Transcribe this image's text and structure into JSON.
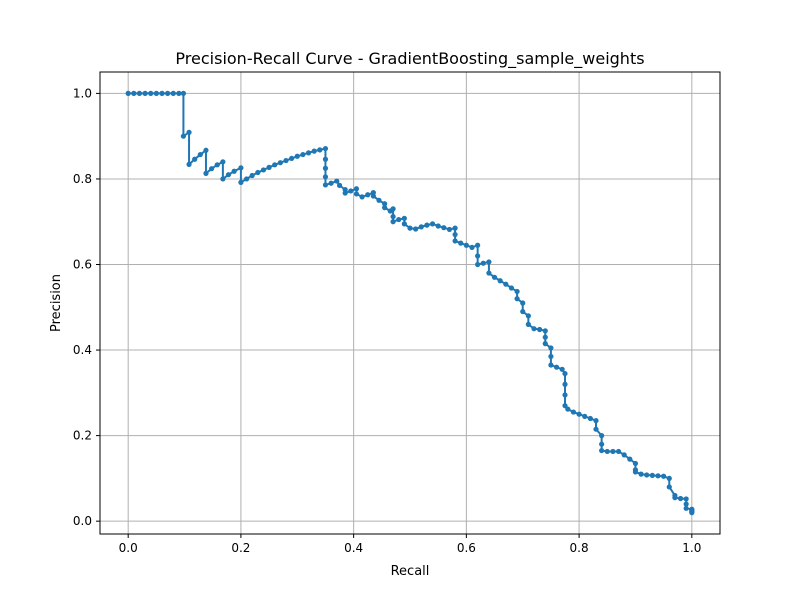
{
  "chart_data": {
    "type": "line",
    "title": "Precision-Recall Curve - GradientBoosting_sample_weights",
    "xlabel": "Recall",
    "ylabel": "Precision",
    "xlim": [
      -0.05,
      1.05
    ],
    "ylim": [
      -0.03,
      1.05
    ],
    "xticks": [
      0.0,
      0.2,
      0.4,
      0.6,
      0.8,
      1.0
    ],
    "xtick_labels": [
      "0.0",
      "0.2",
      "0.4",
      "0.6",
      "0.8",
      "1.0"
    ],
    "yticks": [
      0.0,
      0.2,
      0.4,
      0.6,
      0.8,
      1.0
    ],
    "ytick_labels": [
      "0.0",
      "0.2",
      "0.4",
      "0.6",
      "0.8",
      "1.0"
    ],
    "grid": true,
    "color": "#1f77b4",
    "marker": "circle",
    "series": [
      {
        "points": [
          [
            0.0,
            1.0
          ],
          [
            0.01,
            1.0
          ],
          [
            0.02,
            1.0
          ],
          [
            0.03,
            1.0
          ],
          [
            0.04,
            1.0
          ],
          [
            0.05,
            1.0
          ],
          [
            0.06,
            1.0
          ],
          [
            0.07,
            1.0
          ],
          [
            0.08,
            1.0
          ],
          [
            0.09,
            1.0
          ],
          [
            0.098,
            1.0
          ],
          [
            0.098,
            0.9
          ],
          [
            0.108,
            0.909
          ],
          [
            0.108,
            0.834
          ],
          [
            0.118,
            0.846
          ],
          [
            0.128,
            0.857
          ],
          [
            0.138,
            0.867
          ],
          [
            0.138,
            0.813
          ],
          [
            0.148,
            0.824
          ],
          [
            0.158,
            0.833
          ],
          [
            0.168,
            0.84
          ],
          [
            0.168,
            0.8
          ],
          [
            0.178,
            0.81
          ],
          [
            0.188,
            0.818
          ],
          [
            0.2,
            0.826
          ],
          [
            0.2,
            0.792
          ],
          [
            0.21,
            0.8
          ],
          [
            0.22,
            0.808
          ],
          [
            0.23,
            0.815
          ],
          [
            0.24,
            0.821
          ],
          [
            0.25,
            0.827
          ],
          [
            0.26,
            0.833
          ],
          [
            0.27,
            0.838
          ],
          [
            0.28,
            0.843
          ],
          [
            0.29,
            0.848
          ],
          [
            0.3,
            0.853
          ],
          [
            0.31,
            0.857
          ],
          [
            0.32,
            0.861
          ],
          [
            0.33,
            0.865
          ],
          [
            0.34,
            0.868
          ],
          [
            0.35,
            0.871
          ],
          [
            0.35,
            0.846
          ],
          [
            0.35,
            0.825
          ],
          [
            0.35,
            0.805
          ],
          [
            0.35,
            0.786
          ],
          [
            0.36,
            0.79
          ],
          [
            0.37,
            0.795
          ],
          [
            0.375,
            0.785
          ],
          [
            0.385,
            0.775
          ],
          [
            0.385,
            0.767
          ],
          [
            0.395,
            0.772
          ],
          [
            0.405,
            0.777
          ],
          [
            0.405,
            0.765
          ],
          [
            0.415,
            0.758
          ],
          [
            0.425,
            0.763
          ],
          [
            0.435,
            0.768
          ],
          [
            0.435,
            0.76
          ],
          [
            0.445,
            0.75
          ],
          [
            0.455,
            0.742
          ],
          [
            0.455,
            0.733
          ],
          [
            0.465,
            0.725
          ],
          [
            0.47,
            0.73
          ],
          [
            0.47,
            0.712
          ],
          [
            0.47,
            0.7
          ],
          [
            0.48,
            0.705
          ],
          [
            0.49,
            0.708
          ],
          [
            0.49,
            0.695
          ],
          [
            0.5,
            0.685
          ],
          [
            0.51,
            0.683
          ],
          [
            0.52,
            0.688
          ],
          [
            0.53,
            0.692
          ],
          [
            0.54,
            0.695
          ],
          [
            0.55,
            0.69
          ],
          [
            0.56,
            0.686
          ],
          [
            0.57,
            0.682
          ],
          [
            0.58,
            0.685
          ],
          [
            0.58,
            0.67
          ],
          [
            0.58,
            0.655
          ],
          [
            0.59,
            0.65
          ],
          [
            0.6,
            0.645
          ],
          [
            0.61,
            0.64
          ],
          [
            0.62,
            0.645
          ],
          [
            0.62,
            0.62
          ],
          [
            0.62,
            0.6
          ],
          [
            0.63,
            0.603
          ],
          [
            0.64,
            0.606
          ],
          [
            0.64,
            0.58
          ],
          [
            0.65,
            0.57
          ],
          [
            0.66,
            0.562
          ],
          [
            0.67,
            0.554
          ],
          [
            0.68,
            0.545
          ],
          [
            0.69,
            0.537
          ],
          [
            0.69,
            0.52
          ],
          [
            0.7,
            0.51
          ],
          [
            0.7,
            0.49
          ],
          [
            0.71,
            0.48
          ],
          [
            0.71,
            0.46
          ],
          [
            0.72,
            0.45
          ],
          [
            0.73,
            0.448
          ],
          [
            0.74,
            0.445
          ],
          [
            0.74,
            0.43
          ],
          [
            0.74,
            0.415
          ],
          [
            0.75,
            0.405
          ],
          [
            0.75,
            0.385
          ],
          [
            0.75,
            0.365
          ],
          [
            0.76,
            0.36
          ],
          [
            0.77,
            0.355
          ],
          [
            0.775,
            0.345
          ],
          [
            0.775,
            0.32
          ],
          [
            0.775,
            0.295
          ],
          [
            0.775,
            0.27
          ],
          [
            0.78,
            0.262
          ],
          [
            0.79,
            0.255
          ],
          [
            0.8,
            0.25
          ],
          [
            0.81,
            0.245
          ],
          [
            0.82,
            0.24
          ],
          [
            0.83,
            0.235
          ],
          [
            0.83,
            0.215
          ],
          [
            0.84,
            0.2
          ],
          [
            0.84,
            0.18
          ],
          [
            0.84,
            0.165
          ],
          [
            0.85,
            0.163
          ],
          [
            0.86,
            0.163
          ],
          [
            0.87,
            0.163
          ],
          [
            0.88,
            0.155
          ],
          [
            0.89,
            0.145
          ],
          [
            0.9,
            0.135
          ],
          [
            0.9,
            0.12
          ],
          [
            0.9,
            0.115
          ],
          [
            0.91,
            0.11
          ],
          [
            0.92,
            0.108
          ],
          [
            0.93,
            0.107
          ],
          [
            0.94,
            0.106
          ],
          [
            0.95,
            0.105
          ],
          [
            0.96,
            0.1
          ],
          [
            0.96,
            0.08
          ],
          [
            0.97,
            0.06
          ],
          [
            0.97,
            0.055
          ],
          [
            0.98,
            0.053
          ],
          [
            0.99,
            0.052
          ],
          [
            0.99,
            0.04
          ],
          [
            0.99,
            0.03
          ],
          [
            1.0,
            0.028
          ],
          [
            1.0,
            0.026
          ],
          [
            1.0,
            0.024
          ],
          [
            1.0,
            0.022
          ],
          [
            1.0,
            0.02
          ]
        ]
      }
    ]
  }
}
